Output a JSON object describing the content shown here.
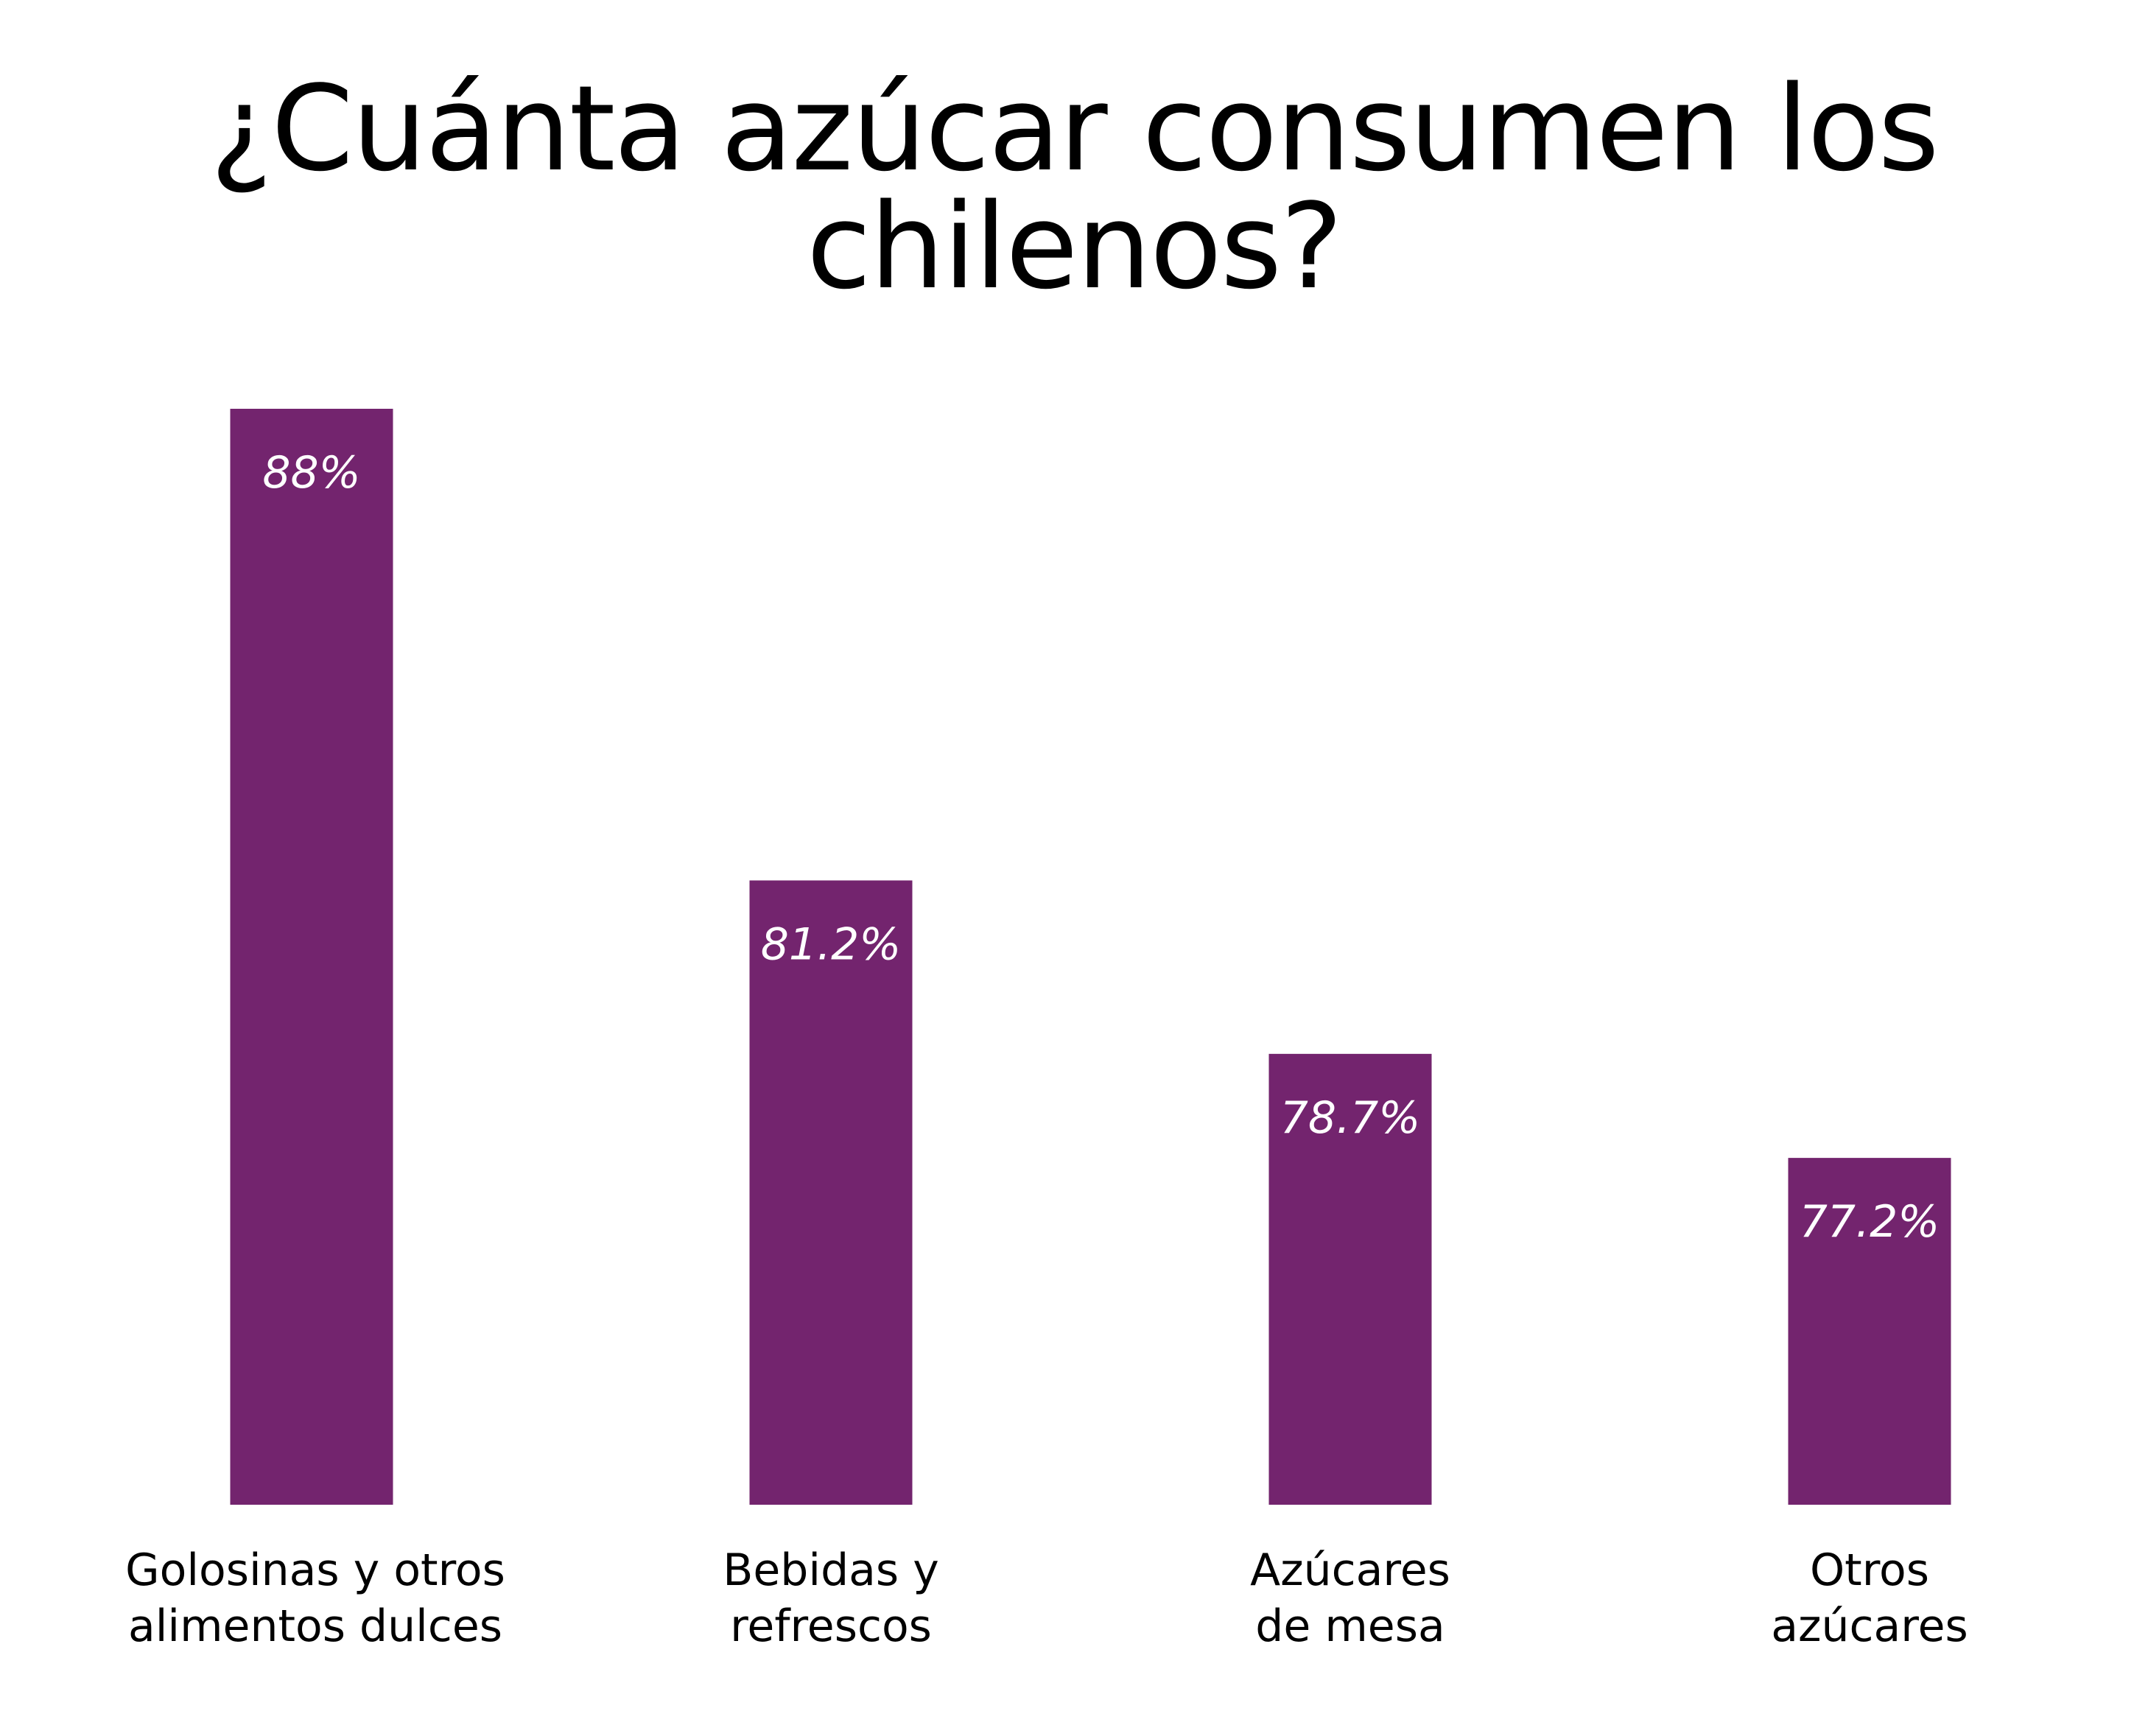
{
  "chart_data": {
    "type": "bar",
    "title": "¿Cuánta azúcar consumen los chilenos?",
    "categories": [
      [
        "Golosinas y otros",
        "alimentos dulces"
      ],
      [
        "Bebidas y",
        "refrescos"
      ],
      [
        "Azúcares",
        "de mesa"
      ],
      [
        "Otros",
        "azúcares"
      ]
    ],
    "values": [
      88,
      81.2,
      78.7,
      77.2
    ],
    "value_labels": [
      "88%",
      "81.2%",
      "78.7%",
      "77.2%"
    ],
    "unit": "%",
    "bar_color": "#73246E",
    "label_color": "#ffffff",
    "grid": false,
    "legend": "none"
  }
}
